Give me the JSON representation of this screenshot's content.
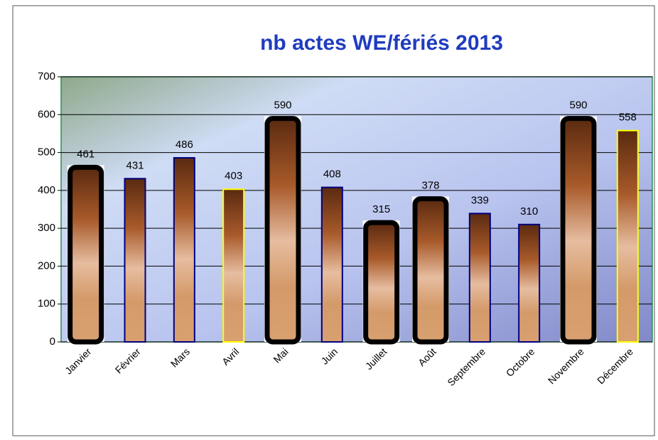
{
  "chart_data": {
    "type": "bar",
    "title": "nb actes WE/fériés 2013",
    "categories": [
      "Janvier",
      "Février",
      "Mars",
      "Avril",
      "Mai",
      "Juin",
      "Juillet",
      "Août",
      "Septembre",
      "Octobre",
      "Novembre",
      "Décembre"
    ],
    "values": [
      461,
      431,
      486,
      403,
      590,
      408,
      315,
      378,
      339,
      310,
      590,
      558
    ],
    "outline_colors": [
      "#000000",
      "#000080",
      "#000080",
      "#ffff00",
      "#000000",
      "#000080",
      "#000000",
      "#000000",
      "#000080",
      "#000080",
      "#000000",
      "#ffff00"
    ],
    "ylim": [
      0,
      700
    ],
    "yticks": [
      0,
      100,
      200,
      300,
      400,
      500,
      600,
      700
    ],
    "grid": true
  }
}
